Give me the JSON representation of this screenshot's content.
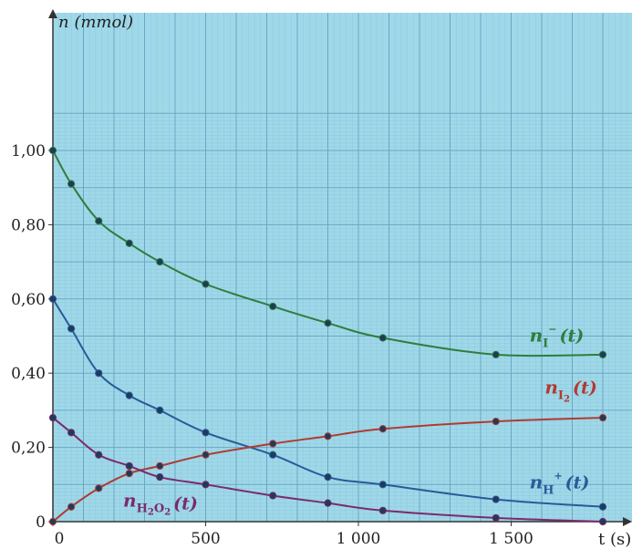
{
  "chart_data": {
    "type": "line",
    "title": "",
    "xlabel": "t (s)",
    "ylabel": "n (mmol)",
    "xlim": [
      0,
      1900
    ],
    "ylim": [
      0,
      1.1
    ],
    "grid": true,
    "x_ticks": [
      {
        "value": 0,
        "label": "0"
      },
      {
        "value": 500,
        "label": "500"
      },
      {
        "value": 1000,
        "label": "1 000"
      },
      {
        "value": 1500,
        "label": "1 500"
      }
    ],
    "y_ticks": [
      {
        "value": 0,
        "label": "0"
      },
      {
        "value": 0.2,
        "label": "0,20"
      },
      {
        "value": 0.4,
        "label": "0,40"
      },
      {
        "value": 0.6,
        "label": "0,60"
      },
      {
        "value": 0.8,
        "label": "0,80"
      },
      {
        "value": 1.0,
        "label": "1,00"
      }
    ],
    "series": [
      {
        "name": "n_I⁻(t)",
        "label_main": "n",
        "label_sub": "I",
        "label_sup": "−",
        "label_suffix": "(t)",
        "color": "#2e7d3c",
        "label_at": [
          1560,
          0.485
        ],
        "points": [
          [
            0,
            1.0
          ],
          [
            60,
            0.91
          ],
          [
            150,
            0.81
          ],
          [
            250,
            0.75
          ],
          [
            350,
            0.7
          ],
          [
            500,
            0.64
          ],
          [
            720,
            0.58
          ],
          [
            900,
            0.535
          ],
          [
            1080,
            0.495
          ],
          [
            1450,
            0.45
          ],
          [
            1800,
            0.45
          ]
        ]
      },
      {
        "name": "n_H⁺(t)",
        "label_main": "n",
        "label_sub": "H",
        "label_sup": "+",
        "label_suffix": "(t)",
        "color": "#2a5a9a",
        "label_at": [
          1560,
          0.09
        ],
        "points": [
          [
            0,
            0.6
          ],
          [
            60,
            0.52
          ],
          [
            150,
            0.4
          ],
          [
            250,
            0.34
          ],
          [
            350,
            0.3
          ],
          [
            500,
            0.24
          ],
          [
            720,
            0.18
          ],
          [
            900,
            0.12
          ],
          [
            1080,
            0.1
          ],
          [
            1450,
            0.06
          ],
          [
            1800,
            0.04
          ]
        ]
      },
      {
        "name": "n_I₂(t)",
        "label_main": "n",
        "label_sub": "I",
        "label_sub2": "2",
        "label_sup": "",
        "label_suffix": "(t)",
        "color": "#b03a32",
        "label_at": [
          1610,
          0.345
        ],
        "points": [
          [
            0,
            0.0
          ],
          [
            60,
            0.04
          ],
          [
            150,
            0.09
          ],
          [
            250,
            0.13
          ],
          [
            350,
            0.15
          ],
          [
            500,
            0.18
          ],
          [
            720,
            0.21
          ],
          [
            900,
            0.23
          ],
          [
            1080,
            0.25
          ],
          [
            1450,
            0.27
          ],
          [
            1800,
            0.28
          ]
        ]
      },
      {
        "name": "n_H₂O₂(t)",
        "label_main": "n",
        "label_sub": "H",
        "label_sub2": "2",
        "label_sub3": "O",
        "label_sub4": "2",
        "label_sup": "",
        "label_suffix": "(t)",
        "color": "#7a2a6e",
        "label_at": [
          230,
          0.04
        ],
        "points": [
          [
            0,
            0.28
          ],
          [
            60,
            0.24
          ],
          [
            150,
            0.18
          ],
          [
            250,
            0.15
          ],
          [
            350,
            0.12
          ],
          [
            500,
            0.1
          ],
          [
            720,
            0.07
          ],
          [
            900,
            0.05
          ],
          [
            1080,
            0.03
          ],
          [
            1450,
            0.01
          ],
          [
            1800,
            0.0
          ]
        ]
      }
    ],
    "colors": {
      "background": "#9fd8e8",
      "grid_major": "#6aa7c6",
      "grid_minor": "#8fc8de",
      "axis": "#333333"
    }
  }
}
